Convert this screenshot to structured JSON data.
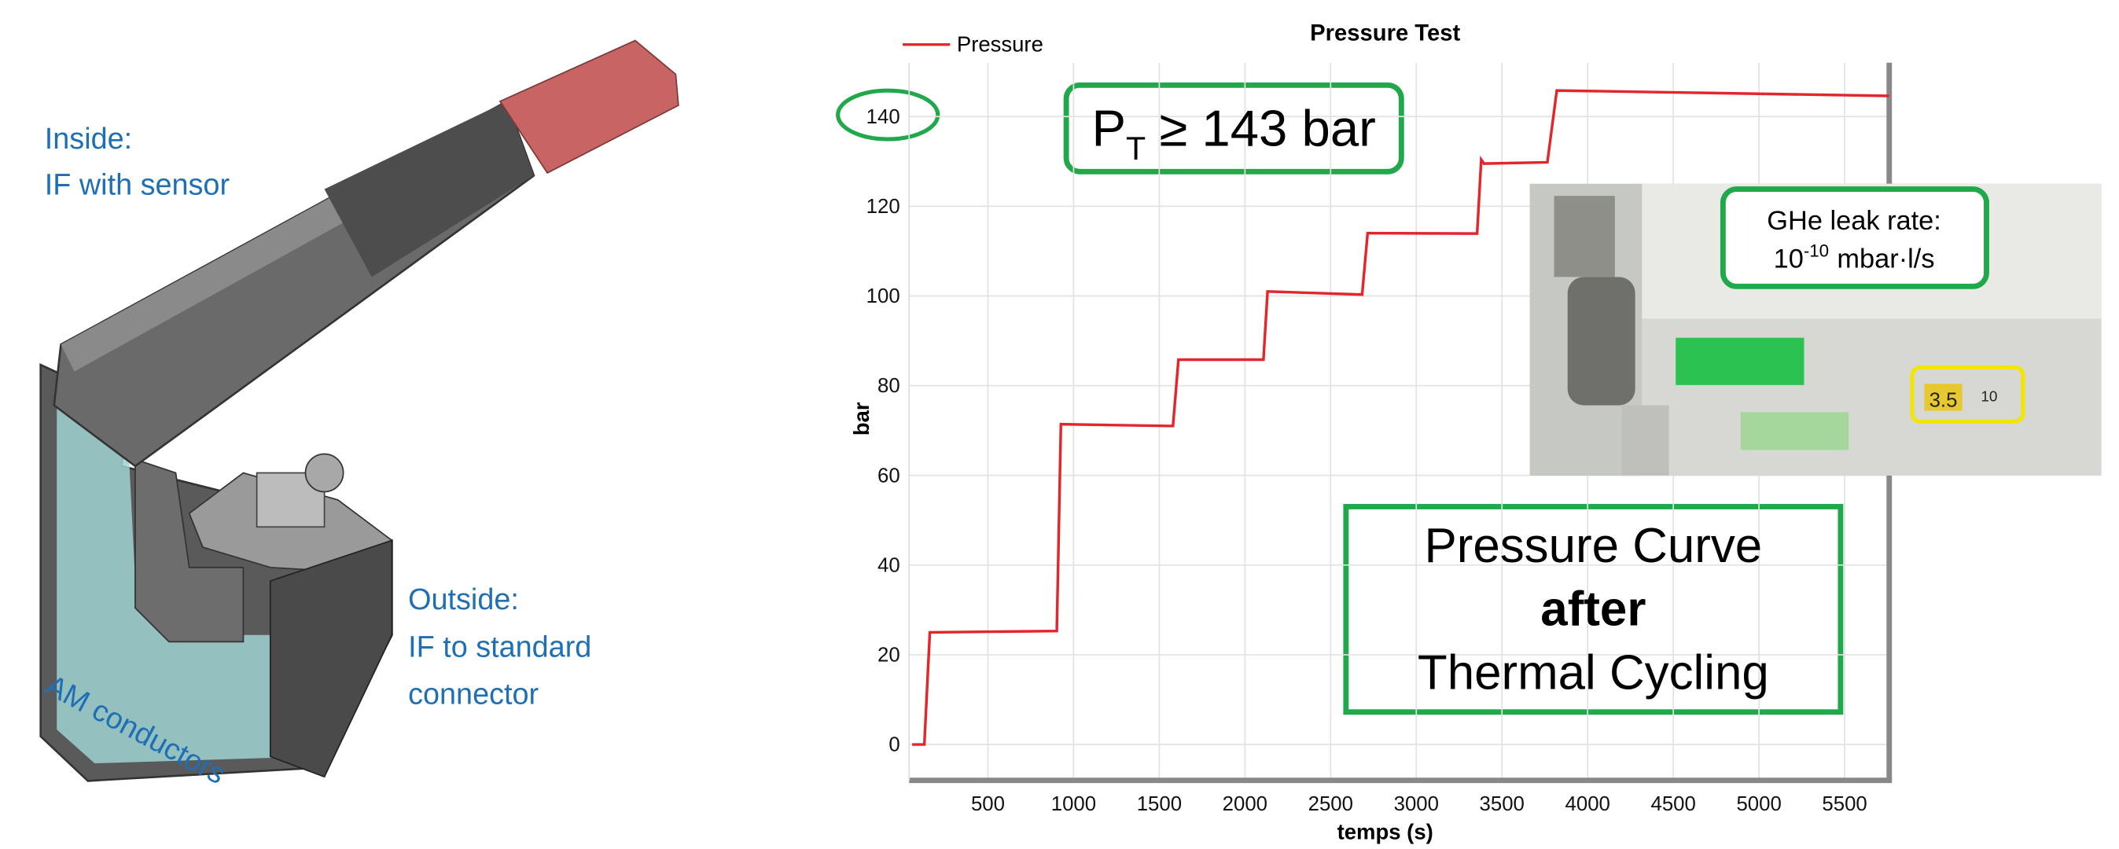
{
  "chart_data": {
    "type": "line",
    "title": "Pressure Test",
    "xlabel": "temps (s)",
    "ylabel": "bar",
    "x": [
      58,
      129,
      161,
      902,
      926,
      1580,
      1612,
      2108,
      2132,
      2684,
      2716,
      3355,
      3379,
      3395,
      3765,
      3820,
      5760
    ],
    "series": [
      {
        "name": "Pressure",
        "color": "#e3262b",
        "values": [
          0,
          0,
          25,
          25.3,
          71.4,
          71,
          85.8,
          85.8,
          101,
          100.3,
          114,
          113.9,
          130.4,
          129.5,
          129.8,
          145.8,
          144.6
        ]
      }
    ],
    "xlim": [
      40,
      5760
    ],
    "xticks": [
      500,
      1000,
      1500,
      2000,
      2500,
      3000,
      3500,
      4000,
      4500,
      5000,
      5500
    ],
    "ylim": [
      -8,
      152
    ],
    "yticks": [
      0,
      20,
      40,
      60,
      80,
      100,
      120,
      140
    ],
    "grid": true,
    "legend": "top-left",
    "annotations": {
      "threshold": {
        "symbol": "P",
        "subscript": "T",
        "text": "≥ 143 bar"
      },
      "leak_rate": {
        "line1": "GHe leak rate:",
        "base": "10",
        "exponent": "-10",
        "unit": "mbar·l/s"
      },
      "caption": {
        "line1": "Pressure Curve",
        "line2": "after",
        "line3": "Thermal Cycling"
      }
    }
  },
  "illustration": {
    "inside": [
      "Inside:",
      "IF with sensor"
    ],
    "outside": [
      "Outside:",
      "IF to standard",
      "connector"
    ],
    "conductors": "AM conductors"
  },
  "photo": {
    "display_1": "3.5",
    "display_2": "10"
  }
}
